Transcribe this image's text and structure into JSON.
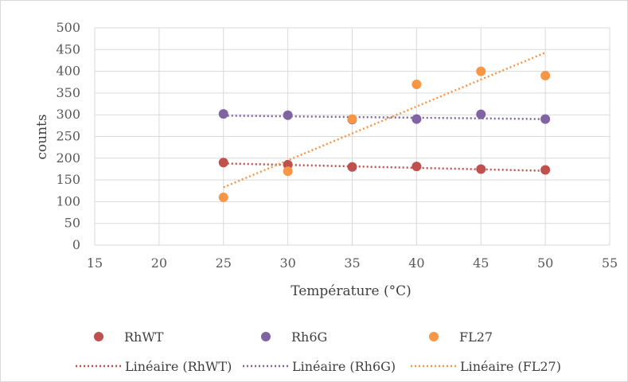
{
  "chart_data": {
    "type": "scatter",
    "xlabel": "Température (°C)",
    "ylabel": "counts",
    "xlim": [
      15,
      55
    ],
    "ylim": [
      0,
      500
    ],
    "xticks": [
      15,
      20,
      25,
      30,
      35,
      40,
      45,
      50,
      55
    ],
    "yticks": [
      0,
      50,
      100,
      150,
      200,
      250,
      300,
      350,
      400,
      450,
      500
    ],
    "xtick_labels": [
      "15",
      "20",
      "25",
      "30",
      "35",
      "40",
      "45",
      "50",
      "55"
    ],
    "ytick_labels": [
      "0",
      "50",
      "100",
      "150",
      "200",
      "250",
      "300",
      "350",
      "400",
      "450",
      "500"
    ],
    "grid": true,
    "legend_position": "bottom",
    "series": [
      {
        "name": "RhWT",
        "color": "#c0504d",
        "x": [
          25,
          30,
          35,
          40,
          45,
          50
        ],
        "y": [
          190,
          185,
          180,
          181,
          175,
          173
        ],
        "trendline": {
          "name": "Linéaire (RhWT)",
          "start": [
            25,
            188
          ],
          "end": [
            50,
            171
          ]
        }
      },
      {
        "name": "Rh6G",
        "color": "#8064a2",
        "x": [
          25,
          30,
          35,
          40,
          45,
          50
        ],
        "y": [
          302,
          299,
          289,
          290,
          301,
          290
        ],
        "trendline": {
          "name": "Linéaire (Rh6G)",
          "start": [
            25,
            298
          ],
          "end": [
            50,
            290
          ]
        }
      },
      {
        "name": "FL27",
        "color": "#f79646",
        "x": [
          25,
          30,
          35,
          40,
          45,
          50
        ],
        "y": [
          110,
          170,
          290,
          370,
          400,
          390
        ],
        "trendline": {
          "name": "Linéaire (FL27)",
          "start": [
            25,
            133
          ],
          "end": [
            50,
            443
          ]
        }
      }
    ]
  }
}
